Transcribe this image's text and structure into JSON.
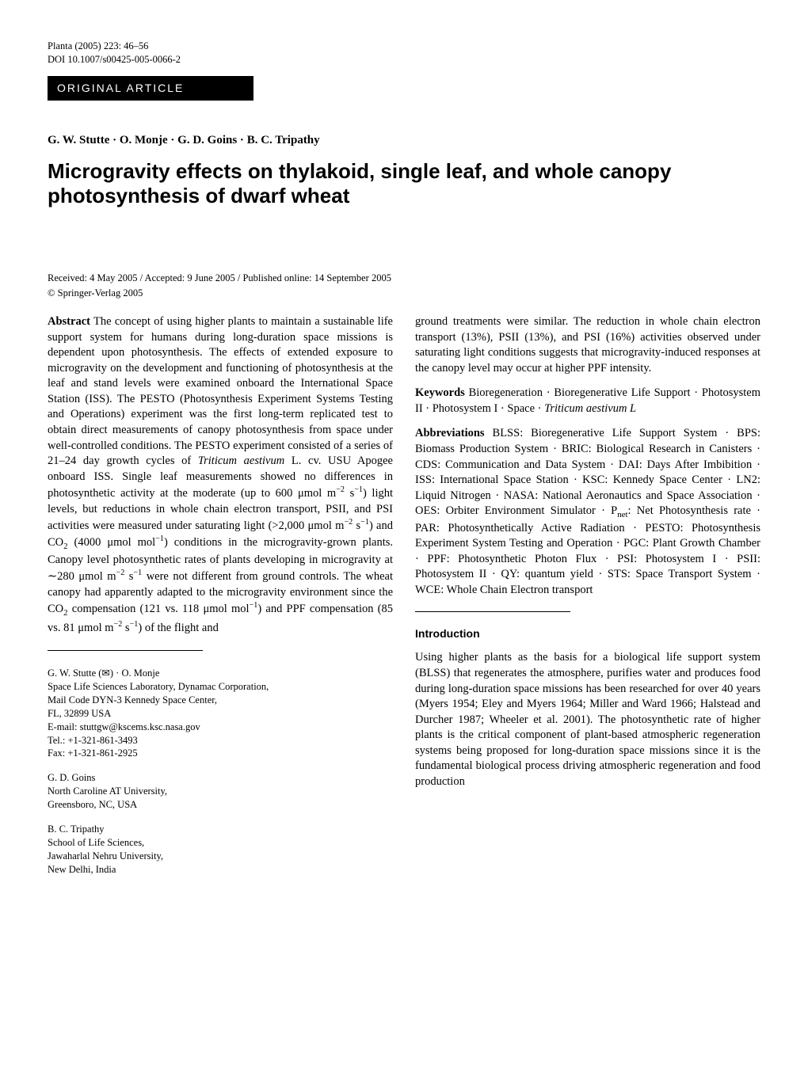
{
  "journal_meta": {
    "line1": "Planta (2005) 223: 46–56",
    "line2": "DOI 10.1007/s00425-005-0066-2"
  },
  "article_type": "ORIGINAL ARTICLE",
  "authors": "G. W. Stutte · O. Monje · G. D. Goins · B. C. Tripathy",
  "title": "Microgravity effects on thylakoid, single leaf, and whole canopy photosynthesis of dwarf wheat",
  "received": "Received: 4 May 2005 / Accepted: 9 June 2005 / Published online: 14 September 2005",
  "copyright": "© Springer-Verlag 2005",
  "abstract": {
    "label": "Abstract",
    "text_html": "The concept of using higher plants to maintain a sustainable life support system for humans during long-duration space missions is dependent upon photosynthesis. The effects of extended exposure to microgravity on the development and functioning of photosynthesis at the leaf and stand levels were examined onboard the International Space Station (ISS). The PESTO (Photosynthesis Experiment Systems Testing and Operations) experiment was the first long-term replicated test to obtain direct measurements of canopy photosynthesis from space under well-controlled conditions. The PESTO experiment consisted of a series of 21–24 day growth cycles of <span class=\"italic\">Triticum aestivum</span> L. cv. USU Apogee onboard ISS. Single leaf measurements showed no differences in photosynthetic activity at the moderate (up to 600 μmol m<sup>−2</sup> s<sup>−1</sup>) light levels, but reductions in whole chain electron transport, PSII, and PSI activities were measured under saturating light (>2,000 μmol m<sup>−2</sup> s<sup>−1</sup>) and CO<sub>2</sub> (4000 μmol mol<sup>−1</sup>) conditions in the microgravity-grown plants. Canopy level photosynthetic rates of plants developing in microgravity at ∼280 μmol m<sup>−2</sup> s<sup>−1</sup> were not different from ground controls. The wheat canopy had apparently adapted to the microgravity environment since the CO<sub>2</sub> compensation (121 vs. 118 μmol mol<sup>−1</sup>) and PPF compensation (85 vs. 81 μmol m<sup>−2</sup> s<sup>−1</sup>) of the flight and"
  },
  "abstract_continuation": "ground treatments were similar. The reduction in whole chain electron transport (13%), PSII (13%), and PSI (16%) activities observed under saturating light conditions suggests that microgravity-induced responses at the canopy level may occur at higher PPF intensity.",
  "keywords": {
    "label": "Keywords",
    "text_html": "Bioregeneration · Bioregenerative Life Support · Photosystem II · Photosystem I · Space · <span class=\"italic\">Triticum aestivum L</span>"
  },
  "abbreviations": {
    "label": "Abbreviations",
    "text_html": "BLSS: Bioregenerative Life Support System · BPS: Biomass Production System · BRIC: Biological Research in Canisters · CDS: Communication and Data System · DAI: Days After Imbibition · ISS: International Space Station · KSC: Kennedy Space Center · LN2: Liquid Nitrogen · NASA: National Aeronautics and Space Association · OES: Orbiter Environment Simulator · P<sub>net</sub>: Net Photosynthesis rate · PAR: Photosynthetically Active Radiation · PESTO: Photosynthesis Experiment System Testing and Operation · PGC: Plant Growth Chamber · PPF: Photosynthetic Photon Flux · PSI: Photosystem I · PSII: Photosystem II · QY: quantum yield · STS: Space Transport System · WCE: Whole Chain Electron transport"
  },
  "introduction": {
    "heading": "Introduction",
    "text": "Using higher plants as the basis for a biological life support system (BLSS) that regenerates the atmosphere, purifies water and produces food during long-duration space missions has been researched for over 40 years (Myers 1954; Eley and Myers 1964; Miller and Ward 1966; Halstead and Durcher 1987; Wheeler et al. 2001). The photosynthetic rate of higher plants is the critical component of plant-based atmospheric regeneration systems being proposed for long-duration space missions since it is the fundamental biological process driving atmospheric regeneration and food production"
  },
  "affiliations": [
    {
      "lines": [
        "G. W. Stutte (✉) · O. Monje",
        "Space Life Sciences Laboratory, Dynamac Corporation,",
        "Mail Code DYN-3 Kennedy Space Center,",
        "FL, 32899 USA",
        "E-mail: stuttgw@kscems.ksc.nasa.gov",
        "Tel.: +1-321-861-3493",
        "Fax: +1-321-861-2925"
      ]
    },
    {
      "lines": [
        "G. D. Goins",
        "North Caroline AT University,",
        "Greensboro, NC, USA"
      ]
    },
    {
      "lines": [
        "B. C. Tripathy",
        "School of Life Sciences,",
        "Jawaharlal Nehru University,",
        "New Delhi, India"
      ]
    }
  ]
}
